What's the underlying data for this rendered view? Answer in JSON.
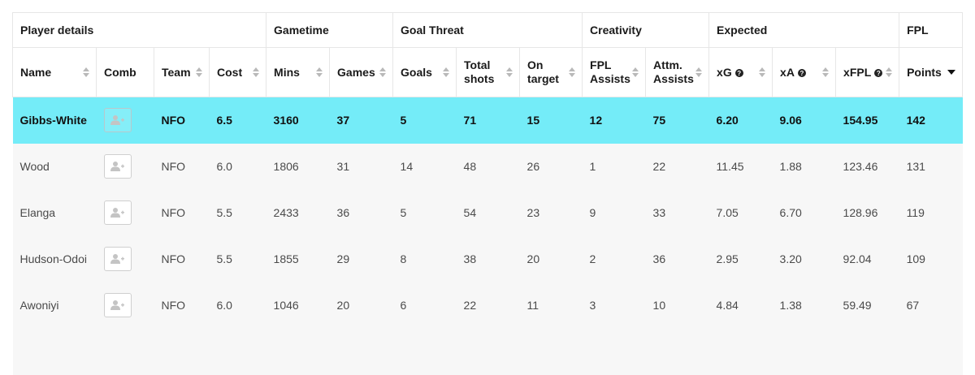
{
  "groups": {
    "player_details": "Player details",
    "gametime": "Gametime",
    "goal_threat": "Goal Threat",
    "creativity": "Creativity",
    "expected": "Expected",
    "fpl": "FPL"
  },
  "columns": {
    "name": "Name",
    "comb": "Comb",
    "team": "Team",
    "cost": "Cost",
    "mins": "Mins",
    "games": "Games",
    "goals": "Goals",
    "total_shots_1": "Total",
    "total_shots_2": "shots",
    "on_target_1": "On",
    "on_target_2": "target",
    "fpl_assists_1": "FPL",
    "fpl_assists_2": "Assists",
    "attm_assists_1": "Attm.",
    "attm_assists_2": "Assists",
    "xg": "xG",
    "xa": "xA",
    "xfpl": "xFPL",
    "points": "Points"
  },
  "help_glyph": "?",
  "icons": {
    "sort": "sort-arrows-icon",
    "sort_desc": "sort-descending-icon",
    "help": "question-icon",
    "add_player": "add-user-icon"
  },
  "colors": {
    "highlight_row": "#74ecf8",
    "alt_row": "#f7f7f7"
  },
  "rows": [
    {
      "name": "Gibbs-White",
      "team": "NFO",
      "cost": "6.5",
      "mins": "3160",
      "games": "37",
      "goals": "5",
      "shots": "71",
      "on_target": "15",
      "fpl_assists": "12",
      "attm_assists": "75",
      "xg": "6.20",
      "xa": "9.06",
      "xfpl": "154.95",
      "points": "142"
    },
    {
      "name": "Wood",
      "team": "NFO",
      "cost": "6.0",
      "mins": "1806",
      "games": "31",
      "goals": "14",
      "shots": "48",
      "on_target": "26",
      "fpl_assists": "1",
      "attm_assists": "22",
      "xg": "11.45",
      "xa": "1.88",
      "xfpl": "123.46",
      "points": "131"
    },
    {
      "name": "Elanga",
      "team": "NFO",
      "cost": "5.5",
      "mins": "2433",
      "games": "36",
      "goals": "5",
      "shots": "54",
      "on_target": "23",
      "fpl_assists": "9",
      "attm_assists": "33",
      "xg": "7.05",
      "xa": "6.70",
      "xfpl": "128.96",
      "points": "119"
    },
    {
      "name": "Hudson-Odoi",
      "team": "NFO",
      "cost": "5.5",
      "mins": "1855",
      "games": "29",
      "goals": "8",
      "shots": "38",
      "on_target": "20",
      "fpl_assists": "2",
      "attm_assists": "36",
      "xg": "2.95",
      "xa": "3.20",
      "xfpl": "92.04",
      "points": "109"
    },
    {
      "name": "Awoniyi",
      "team": "NFO",
      "cost": "6.0",
      "mins": "1046",
      "games": "20",
      "goals": "6",
      "shots": "22",
      "on_target": "11",
      "fpl_assists": "3",
      "attm_assists": "10",
      "xg": "4.84",
      "xa": "1.38",
      "xfpl": "59.49",
      "points": "67"
    },
    {
      "name": "",
      "team": "",
      "cost": "",
      "mins": "",
      "games": "",
      "goals": "",
      "shots": "",
      "on_target": "",
      "fpl_assists": "",
      "attm_assists": "",
      "xg": "",
      "xa": "",
      "xfpl": "",
      "points": ""
    }
  ]
}
